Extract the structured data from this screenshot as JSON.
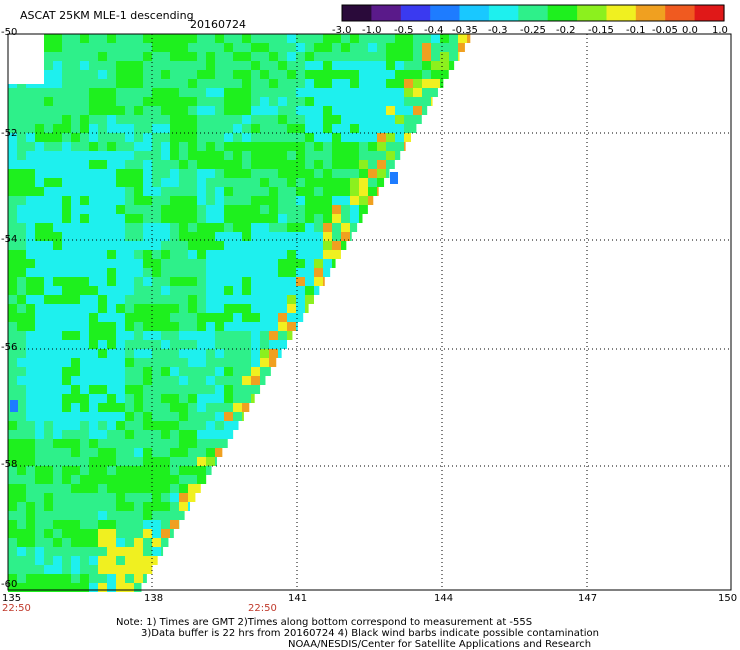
{
  "header": {
    "title": "ASCAT 25KM MLE-1 descending",
    "date": "20160724"
  },
  "colorbar": {
    "labels": [
      "-3.0",
      "-1.0",
      "-0.5",
      "-0.4",
      "-0.35",
      "-0.3",
      "-0.25",
      "-0.2",
      "-0.15",
      "-0.1",
      "-0.05",
      "0.0",
      "1.0"
    ],
    "colors": [
      "#2a0a3a",
      "#5a1a8a",
      "#3a3af0",
      "#1e7cff",
      "#19c8ff",
      "#1ef0ee",
      "#2ef08a",
      "#1ef01e",
      "#8cf01e",
      "#f0f020",
      "#f0a020",
      "#f05a20",
      "#e01818"
    ]
  },
  "map": {
    "lat_labels": [
      "-50",
      "-52",
      "-54",
      "-56",
      "-58",
      "-60"
    ],
    "lon_labels": [
      "135",
      "138",
      "141",
      "144",
      "147",
      "150"
    ],
    "time_labels": [
      "22:50",
      "22:50"
    ]
  },
  "notes": {
    "line1": "Note: 1) Times are GMT 2)Times along bottom correspond to measurement at -55S",
    "line2": "3)Data buffer is 22 hrs from 20160724 4) Black wind barbs indicate possible contamination",
    "line3": "NOAA/NESDIS/Center for Satellite Applications and Research"
  }
}
